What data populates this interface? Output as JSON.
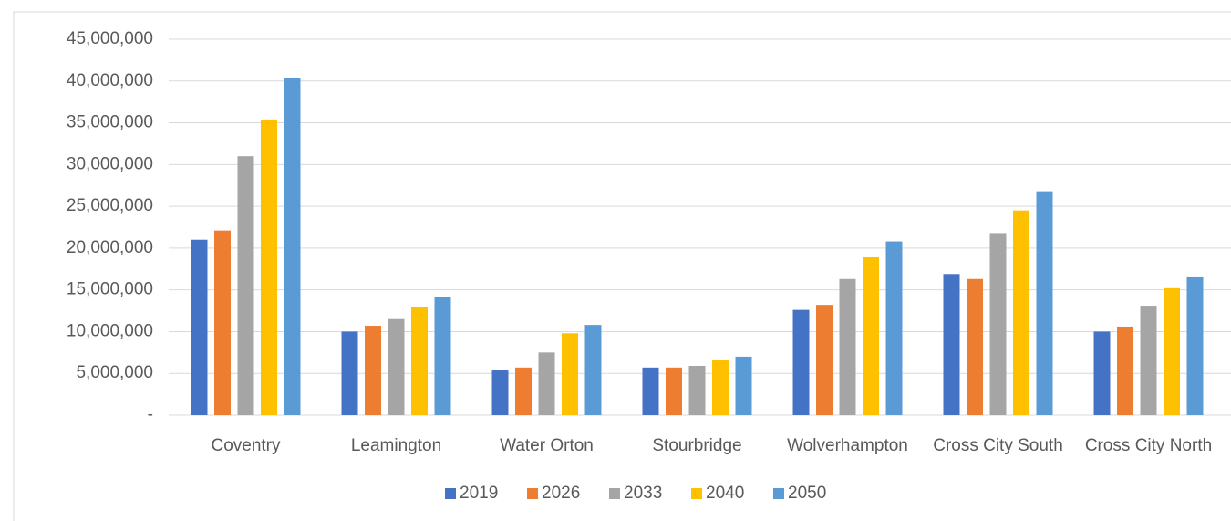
{
  "chart_data": {
    "type": "bar",
    "categories": [
      "Coventry",
      "Leamington",
      "Water Orton",
      "Stourbridge",
      "Wolverhampton",
      "Cross City South",
      "Cross City North"
    ],
    "series": [
      {
        "name": "2019",
        "color": "#4472c4",
        "values": [
          21000000,
          10000000,
          5350000,
          5700000,
          12600000,
          16900000,
          10000000
        ]
      },
      {
        "name": "2026",
        "color": "#ed7d31",
        "values": [
          22100000,
          10700000,
          5700000,
          5700000,
          13200000,
          16300000,
          10600000
        ]
      },
      {
        "name": "2033",
        "color": "#a5a5a5",
        "values": [
          31000000,
          11500000,
          7500000,
          5900000,
          16300000,
          21800000,
          13100000
        ]
      },
      {
        "name": "2040",
        "color": "#ffc000",
        "values": [
          35400000,
          12900000,
          9800000,
          6550000,
          18900000,
          24500000,
          15200000
        ]
      },
      {
        "name": "2050",
        "color": "#5b9bd5",
        "values": [
          40400000,
          14100000,
          10800000,
          7000000,
          20800000,
          26800000,
          16500000
        ]
      }
    ],
    "ylim": [
      0,
      45000000
    ],
    "yticks": [
      {
        "value": 0,
        "label": "-"
      },
      {
        "value": 5000000,
        "label": "5,000,000"
      },
      {
        "value": 10000000,
        "label": "10,000,000"
      },
      {
        "value": 15000000,
        "label": "15,000,000"
      },
      {
        "value": 20000000,
        "label": "20,000,000"
      },
      {
        "value": 25000000,
        "label": "25,000,000"
      },
      {
        "value": 30000000,
        "label": "30,000,000"
      },
      {
        "value": 35000000,
        "label": "35,000,000"
      },
      {
        "value": 40000000,
        "label": "40,000,000"
      },
      {
        "value": 45000000,
        "label": "45,000,000"
      }
    ],
    "grid": true,
    "legend": "bottom"
  }
}
